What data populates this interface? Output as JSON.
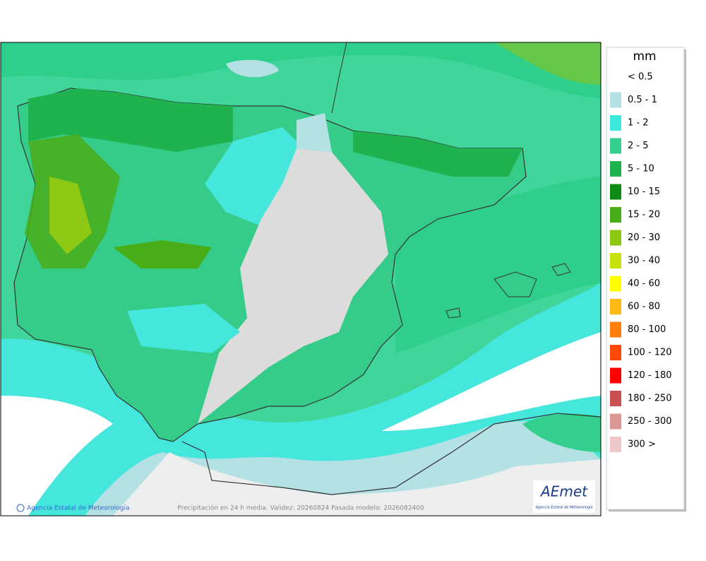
{
  "legend": {
    "unit": "mm",
    "items": [
      {
        "label": "< 0.5",
        "color": "#ffffff"
      },
      {
        "label": "0.5 - 1",
        "color": "#b4e1e4"
      },
      {
        "label": "1 - 2",
        "color": "#3ee8dc"
      },
      {
        "label": "2 - 5",
        "color": "#32d08c"
      },
      {
        "label": "5 - 10",
        "color": "#1fb24e"
      },
      {
        "label": "10 - 15",
        "color": "#0c8c14"
      },
      {
        "label": "15 - 20",
        "color": "#48ad17"
      },
      {
        "label": "20 - 30",
        "color": "#8cc814"
      },
      {
        "label": "30 - 40",
        "color": "#c8e10a"
      },
      {
        "label": "40 - 60",
        "color": "#ffff00"
      },
      {
        "label": "60 - 80",
        "color": "#ffb914"
      },
      {
        "label": "80 - 100",
        "color": "#ff7d0a"
      },
      {
        "label": "100 - 120",
        "color": "#ff4b0a"
      },
      {
        "label": "120 - 180",
        "color": "#ff0000"
      },
      {
        "label": "180 - 250",
        "color": "#c85050"
      },
      {
        "label": "250 - 300",
        "color": "#dc9696"
      },
      {
        "label": "300 >",
        "color": "#f0c8c8"
      }
    ]
  },
  "footer": {
    "credit": "Agencia Estatal de Meteorología",
    "caption": "Precipitación en 24 h media. Validez: 20260824 Pasada modelo: 2026082400"
  },
  "logo": {
    "name": "AEmet",
    "subtitle": "Agencia Estatal de Meteorología"
  }
}
